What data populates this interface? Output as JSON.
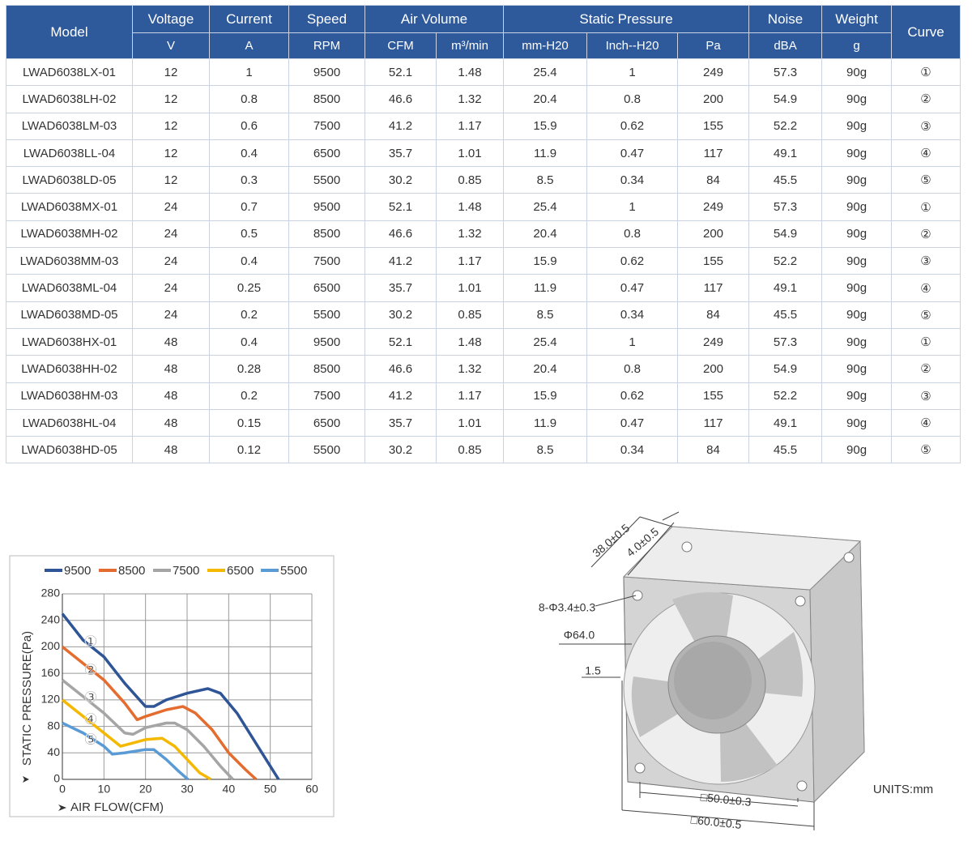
{
  "table": {
    "header": [
      "Model",
      "Voltage",
      "Current",
      "Speed",
      "Air Volume",
      "Static Pressure",
      "Noise",
      "Weight",
      "Curve"
    ],
    "units": [
      "V",
      "A",
      "RPM",
      "CFM",
      "m³/min",
      "mm-H20",
      "Inch--H20",
      "Pa",
      "dBA",
      "g"
    ],
    "rows": [
      [
        "LWAD6038LX-01",
        12,
        1,
        9500,
        52.1,
        1.48,
        25.4,
        1,
        249,
        57.3,
        "90g",
        "①"
      ],
      [
        "LWAD6038LH-02",
        12,
        0.8,
        8500,
        46.6,
        1.32,
        20.4,
        0.8,
        200,
        54.9,
        "90g",
        "②"
      ],
      [
        "LWAD6038LM-03",
        12,
        0.6,
        7500,
        41.2,
        1.17,
        15.9,
        0.62,
        155,
        52.2,
        "90g",
        "③"
      ],
      [
        "LWAD6038LL-04",
        12,
        0.4,
        6500,
        35.7,
        1.01,
        11.9,
        0.47,
        117,
        49.1,
        "90g",
        "④"
      ],
      [
        "LWAD6038LD-05",
        12,
        0.3,
        5500,
        30.2,
        0.85,
        8.5,
        0.34,
        84,
        45.5,
        "90g",
        "⑤"
      ],
      [
        "LWAD6038MX-01",
        24,
        0.7,
        9500,
        52.1,
        1.48,
        25.4,
        1,
        249,
        57.3,
        "90g",
        "①"
      ],
      [
        "LWAD6038MH-02",
        24,
        0.5,
        8500,
        46.6,
        1.32,
        20.4,
        0.8,
        200,
        54.9,
        "90g",
        "②"
      ],
      [
        "LWAD6038MM-03",
        24,
        0.4,
        7500,
        41.2,
        1.17,
        15.9,
        0.62,
        155,
        52.2,
        "90g",
        "③"
      ],
      [
        "LWAD6038ML-04",
        24,
        0.25,
        6500,
        35.7,
        1.01,
        11.9,
        0.47,
        117,
        49.1,
        "90g",
        "④"
      ],
      [
        "LWAD6038MD-05",
        24,
        0.2,
        5500,
        30.2,
        0.85,
        8.5,
        0.34,
        84,
        45.5,
        "90g",
        "⑤"
      ],
      [
        "LWAD6038HX-01",
        48,
        0.4,
        9500,
        52.1,
        1.48,
        25.4,
        1,
        249,
        57.3,
        "90g",
        "①"
      ],
      [
        "LWAD6038HH-02",
        48,
        0.28,
        8500,
        46.6,
        1.32,
        20.4,
        0.8,
        200,
        54.9,
        "90g",
        "②"
      ],
      [
        "LWAD6038HM-03",
        48,
        0.2,
        7500,
        41.2,
        1.17,
        15.9,
        0.62,
        155,
        52.2,
        "90g",
        "③"
      ],
      [
        "LWAD6038HL-04",
        48,
        0.15,
        6500,
        35.7,
        1.01,
        11.9,
        0.47,
        117,
        49.1,
        "90g",
        "④"
      ],
      [
        "LWAD6038HD-05",
        48,
        0.12,
        5500,
        30.2,
        0.85,
        8.5,
        0.34,
        84,
        45.5,
        "90g",
        "⑤"
      ]
    ]
  },
  "chart_data": {
    "type": "line",
    "x_label": "AIR FLOW(CFM)",
    "y_label": "STATIC PRESSURE(Pa)",
    "xlim": [
      0,
      60
    ],
    "xticks": [
      0,
      10,
      20,
      30,
      40,
      50,
      60
    ],
    "ylim": [
      0,
      280
    ],
    "yticks": [
      0,
      40,
      80,
      120,
      160,
      200,
      240,
      280
    ],
    "grid": true,
    "legend": "top",
    "annotations": [
      "①",
      "②",
      "③",
      "④",
      "⑤"
    ],
    "series": [
      {
        "name": "9500",
        "color": "#2f5597",
        "x": [
          0,
          5,
          10,
          15,
          20,
          22,
          25,
          30,
          35,
          38,
          42,
          46,
          50,
          52
        ],
        "values": [
          250,
          210,
          185,
          145,
          110,
          110,
          120,
          130,
          137,
          130,
          100,
          60,
          20,
          0
        ]
      },
      {
        "name": "8500",
        "color": "#e46c2e",
        "x": [
          0,
          5,
          10,
          15,
          18,
          20,
          25,
          29,
          32,
          36,
          40,
          44,
          46.6
        ],
        "values": [
          200,
          175,
          150,
          115,
          90,
          95,
          105,
          110,
          100,
          75,
          40,
          15,
          0
        ]
      },
      {
        "name": "7500",
        "color": "#a5a5a5",
        "x": [
          0,
          5,
          10,
          15,
          17,
          20,
          25,
          27,
          30,
          34,
          38,
          41
        ],
        "values": [
          150,
          125,
          100,
          70,
          68,
          78,
          85,
          85,
          75,
          50,
          20,
          0
        ]
      },
      {
        "name": "6500",
        "color": "#f5b800",
        "x": [
          0,
          5,
          10,
          14,
          17,
          20,
          24,
          27,
          30,
          33,
          35.7
        ],
        "values": [
          120,
          95,
          70,
          50,
          55,
          60,
          62,
          50,
          30,
          10,
          0
        ]
      },
      {
        "name": "5500",
        "color": "#5b9bd5",
        "x": [
          0,
          5,
          10,
          12,
          15,
          20,
          22,
          25,
          28,
          30.2
        ],
        "values": [
          85,
          70,
          50,
          38,
          40,
          45,
          45,
          30,
          12,
          0
        ]
      }
    ]
  },
  "drawing": {
    "labels": [
      "38.0±0.5",
      "4.0±0.5",
      "8-Φ3.4±0.3",
      "Φ64.0",
      "1.5",
      "□50.0±0.3",
      "□60.0±0.5",
      "UNITS:mm"
    ]
  }
}
